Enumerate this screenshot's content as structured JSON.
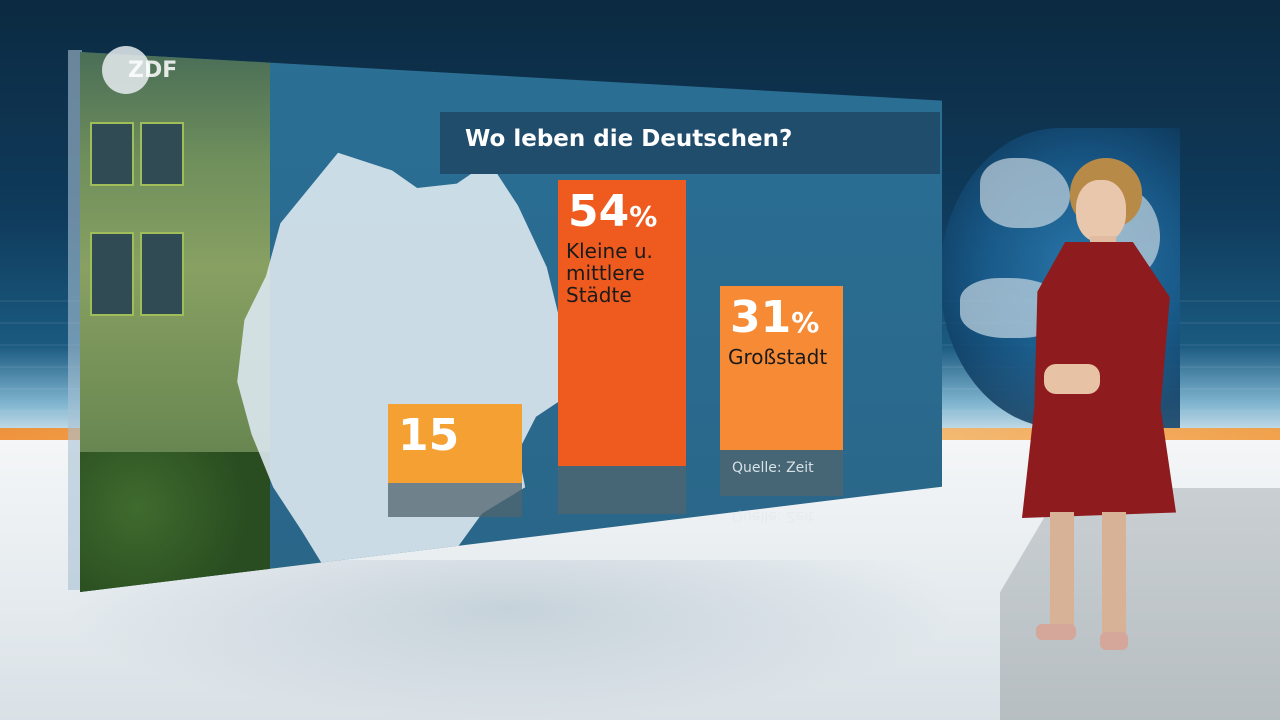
{
  "broadcaster_logo": "ZDF",
  "chart_data": {
    "type": "bar",
    "title": "Wo leben die Deutschen?",
    "categories": [
      "",
      "Kleine u. mittlere Städte",
      "Großstadt"
    ],
    "values": [
      15,
      54,
      31
    ],
    "value_labels": [
      "15",
      "54",
      "31"
    ],
    "unit": "%",
    "source": "Quelle: Zeit",
    "colors": [
      "#f5a033",
      "#ef5a1e",
      "#f68a35"
    ]
  }
}
